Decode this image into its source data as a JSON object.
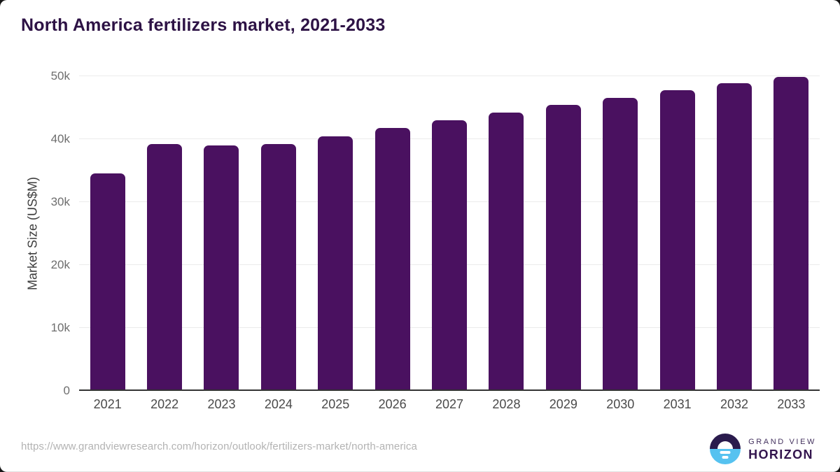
{
  "chart_data": {
    "type": "bar",
    "title": "North America fertilizers market, 2021-2033",
    "categories": [
      "2021",
      "2022",
      "2023",
      "2024",
      "2025",
      "2026",
      "2027",
      "2028",
      "2029",
      "2030",
      "2031",
      "2032",
      "2033"
    ],
    "values": [
      34600,
      39200,
      38950,
      39250,
      40450,
      41750,
      43050,
      44250,
      45450,
      46600,
      47750,
      48850,
      49850
    ],
    "xlabel": "",
    "ylabel": "Market Size (US$M)",
    "ylim": [
      0,
      50000
    ],
    "yticks": [
      {
        "value": 0,
        "label": "0"
      },
      {
        "value": 10000,
        "label": "10k"
      },
      {
        "value": 20000,
        "label": "20k"
      },
      {
        "value": 30000,
        "label": "30k"
      },
      {
        "value": 40000,
        "label": "40k"
      },
      {
        "value": 50000,
        "label": "50k"
      }
    ],
    "grid": true,
    "legend": false
  },
  "footer": {
    "source_url": "https://www.grandviewresearch.com/horizon/outlook/fertilizers-market/north-america",
    "logo": {
      "line1": "GRAND VIEW",
      "line2": "HORIZON"
    }
  },
  "colors": {
    "bar": "#4a1160",
    "title": "#2d1245",
    "axis": "#333333",
    "grid": "#ebebeb",
    "y_tick": "#6e6e6e",
    "x_tick": "#4a4a4a",
    "y_label": "#3d3d3d",
    "url": "#b3b3b3",
    "logo_dark_half": "#2a1b4d",
    "logo_blue_half": "#56c2f0",
    "logo_text": "#33154e"
  }
}
